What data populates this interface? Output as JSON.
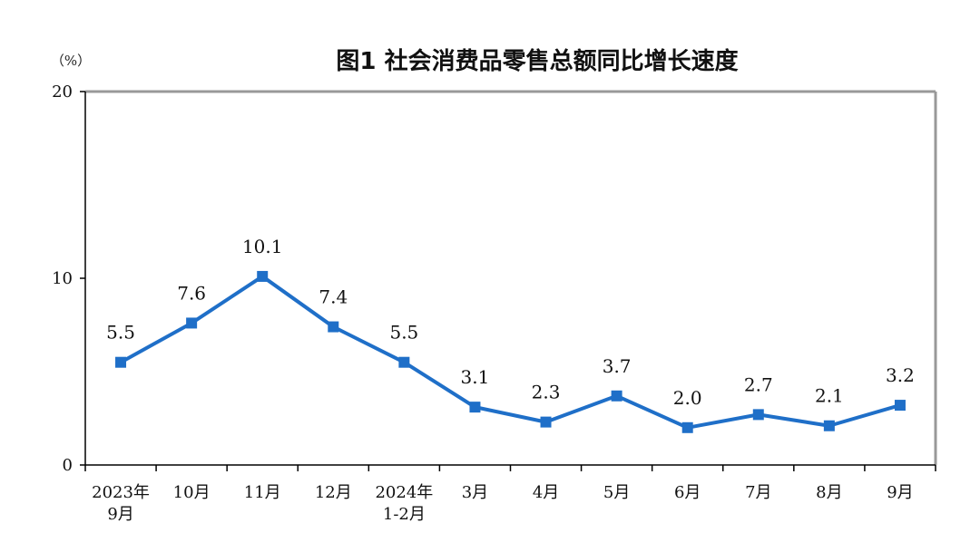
{
  "chart_data": {
    "type": "line",
    "title": "图1  社会消费品零售总额同比增长速度",
    "yunit": "（%）",
    "ylim": [
      0,
      20
    ],
    "yticks": [
      "0",
      "10",
      "20"
    ],
    "categories": [
      [
        "2023年",
        "9月"
      ],
      [
        "10月"
      ],
      [
        "11月"
      ],
      [
        "12月"
      ],
      [
        "2024年",
        "1-2月"
      ],
      [
        "3月"
      ],
      [
        "4月"
      ],
      [
        "5月"
      ],
      [
        "6月"
      ],
      [
        "7月"
      ],
      [
        "8月"
      ],
      [
        "9月"
      ]
    ],
    "values": [
      5.5,
      7.6,
      10.1,
      7.4,
      5.5,
      3.1,
      2.3,
      3.7,
      2.0,
      2.7,
      2.1,
      3.2
    ],
    "value_labels": [
      "5.5",
      "7.6",
      "10.1",
      "7.4",
      "5.5",
      "3.1",
      "2.3",
      "3.7",
      "2.0",
      "2.7",
      "2.1",
      "3.2"
    ],
    "series_color": "#1f6fc8",
    "axis_color": "#000000",
    "frame_color": "#999999",
    "grid": false
  }
}
